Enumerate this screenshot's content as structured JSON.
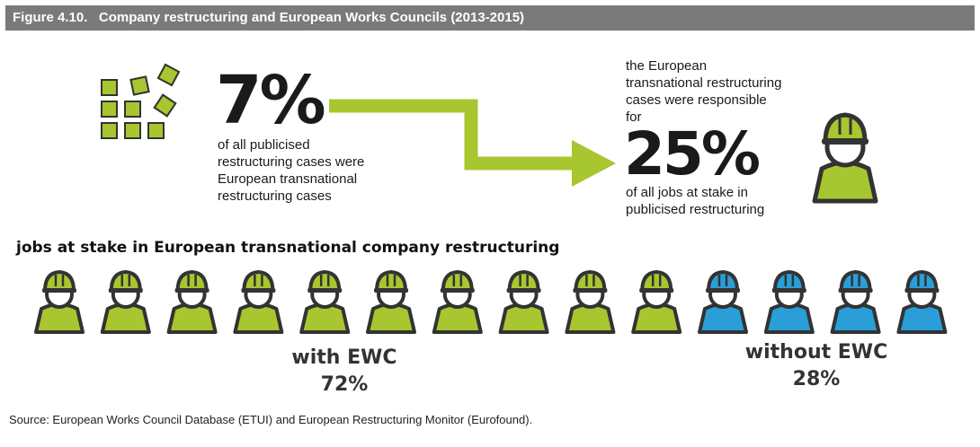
{
  "figure_title": "Figure 4.10.   Company restructuring and European Works Councils (2013-2015)",
  "left_stat": {
    "value": "7%",
    "lines": [
      "of all publicised",
      "restructuring cases were",
      "European transnational",
      "restructuring cases"
    ]
  },
  "right_stat": {
    "pre_lines": [
      "the European",
      "transnational restructuring",
      "cases were responsible",
      "for"
    ],
    "value": "25%",
    "post_lines": [
      "of all jobs at stake in",
      "publicised restructuring"
    ]
  },
  "section_label": "jobs at stake in European transnational company restructuring",
  "colors": {
    "with_ewc": "#a8c62f",
    "without_ewc": "#2a9ed8",
    "outline": "#333333",
    "header": "#7a7a7a",
    "arrow": "#a8c62f"
  },
  "chart_data": {
    "type": "pictogram",
    "title": "jobs at stake in European transnational company restructuring",
    "series": [
      {
        "name": "with EWC",
        "percent": 72,
        "icons": 10,
        "color": "#a8c62f"
      },
      {
        "name": "without EWC",
        "percent": 28,
        "icons": 4,
        "color": "#2a9ed8"
      }
    ],
    "headline_stats": [
      {
        "value": 7,
        "unit": "%"
      },
      {
        "value": 25,
        "unit": "%"
      }
    ]
  },
  "captions": {
    "with": {
      "label": "with EWC",
      "pct": "72%"
    },
    "without": {
      "label": "without EWC",
      "pct": "28%"
    }
  },
  "source": "Source:   European Works Council Database (ETUI) and European Restructuring Monitor (Eurofound)."
}
